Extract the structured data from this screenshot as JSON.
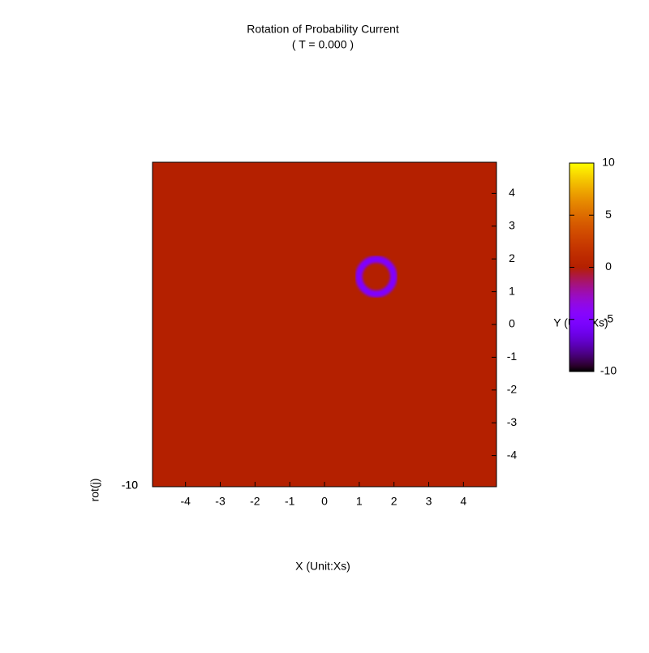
{
  "chart_data": {
    "type": "heatmap",
    "title": "Rotation of Probability Current",
    "subtitle": "( T = 0.000 )",
    "x_label": "X (Unit:Xs)",
    "y_label": "Y (Unit:Xs)",
    "z_label": "rot(j)",
    "xlim": [
      -4.95,
      4.95
    ],
    "xticks": [
      -4,
      -3,
      -2,
      -1,
      0,
      1,
      2,
      3,
      4
    ],
    "ylim": [
      -4.95,
      4.95
    ],
    "yticks": [
      -4,
      -3,
      -2,
      -1,
      0,
      1,
      2,
      3,
      4
    ],
    "zticks": [
      -10,
      10
    ],
    "cblim": [
      -10,
      10
    ],
    "cbticks": [
      -10,
      -5,
      0,
      5,
      10
    ],
    "palette": [
      7,
      5,
      15
    ],
    "background_value": 0,
    "ring": {
      "x": 1.49,
      "y": 1.46,
      "radius": 0.5,
      "width": 0.2,
      "value": -5
    }
  }
}
